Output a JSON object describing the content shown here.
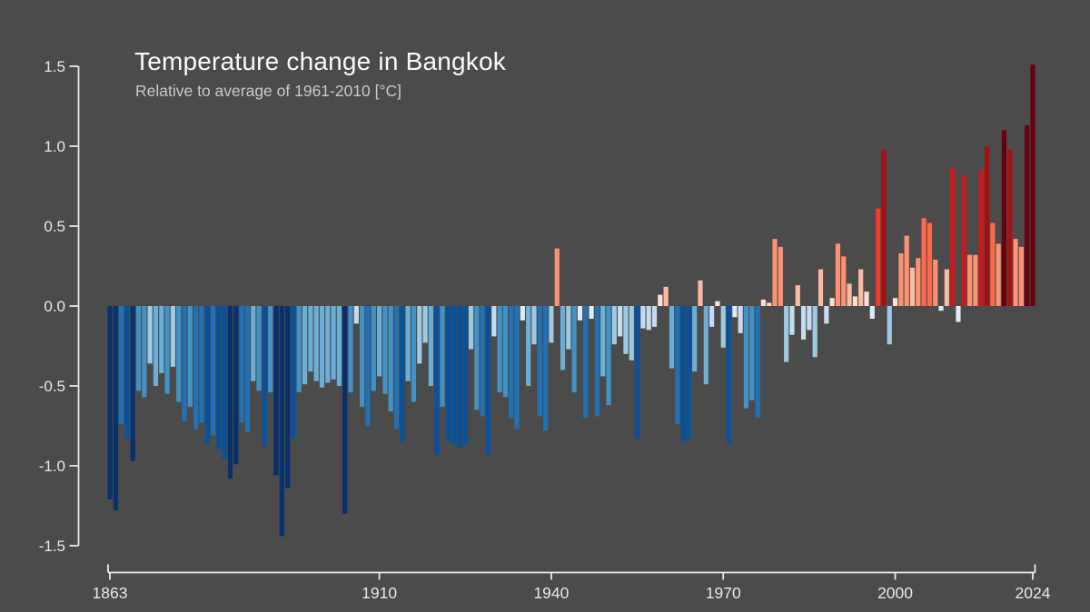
{
  "header": {
    "title": "Temperature change in Bangkok",
    "subtitle": "Relative to average of 1961-2010  [°C]"
  },
  "chart_data": {
    "type": "bar",
    "title": "Temperature change in Bangkok",
    "subtitle": "Relative to average of 1961-2010  [°C]",
    "unit": "°C",
    "xlabel": "",
    "ylabel": "",
    "grid": false,
    "legend": "none",
    "x_range": [
      1863,
      2024
    ],
    "ylim": [
      -1.5,
      1.5
    ],
    "y_tick_labels": [
      "1.5",
      "1.0",
      "0.5",
      "0.0",
      "-0.5",
      "-1.0",
      "-1.5"
    ],
    "y_tick_values": [
      1.5,
      1.0,
      0.5,
      0.0,
      -0.5,
      -1.0,
      -1.5
    ],
    "x_tick_labels": [
      "1863",
      "1910",
      "1940",
      "1970",
      "2000",
      "2024"
    ],
    "x_tick_years": [
      1863,
      1910,
      1940,
      1970,
      2000,
      2024
    ],
    "start_year": 1863,
    "end_year": 2024,
    "values": [
      -1.21,
      -1.28,
      -0.74,
      -0.83,
      -0.97,
      -0.53,
      -0.57,
      -0.36,
      -0.5,
      -0.42,
      -0.55,
      -0.38,
      -0.6,
      -0.72,
      -0.63,
      -0.77,
      -0.73,
      -0.86,
      -0.81,
      -0.9,
      -0.96,
      -1.08,
      -0.99,
      -0.73,
      -0.79,
      -0.47,
      -0.53,
      -0.88,
      -0.54,
      -1.06,
      -1.44,
      -1.14,
      -0.83,
      -0.54,
      -0.49,
      -0.41,
      -0.47,
      -0.51,
      -0.48,
      -0.46,
      -0.5,
      -1.3,
      -0.54,
      -0.11,
      -0.63,
      -0.75,
      -0.53,
      -0.44,
      -0.55,
      -0.66,
      -0.77,
      -0.85,
      -0.47,
      -0.6,
      -0.36,
      -0.23,
      -0.5,
      -0.93,
      -0.63,
      -0.85,
      -0.86,
      -0.89,
      -0.87,
      -0.27,
      -0.65,
      -0.69,
      -0.93,
      -0.19,
      -0.54,
      -0.57,
      -0.7,
      -0.77,
      -0.09,
      -0.5,
      -0.24,
      -0.69,
      -0.78,
      -0.23,
      0.36,
      -0.4,
      -0.27,
      -0.54,
      -0.09,
      -0.7,
      -0.08,
      -0.69,
      -0.44,
      -0.62,
      -0.24,
      -0.19,
      -0.3,
      -0.34,
      -0.83,
      -0.14,
      -0.15,
      -0.13,
      0.07,
      0.12,
      -0.39,
      -0.74,
      -0.85,
      -0.83,
      -0.41,
      0.16,
      -0.49,
      -0.13,
      0.03,
      -0.26,
      -0.86,
      -0.07,
      -0.17,
      -0.64,
      -0.59,
      -0.7,
      0.04,
      0.02,
      0.42,
      0.37,
      -0.35,
      -0.18,
      0.13,
      -0.21,
      -0.15,
      -0.32,
      0.23,
      -0.11,
      0.05,
      0.39,
      0.31,
      0.14,
      0.06,
      0.23,
      0.09,
      -0.08,
      0.61,
      0.98,
      -0.24,
      0.05,
      0.33,
      0.44,
      0.24,
      0.3,
      0.55,
      0.52,
      0.29,
      -0.03,
      0.23,
      0.86,
      -0.1,
      0.81,
      0.32,
      0.32,
      0.85,
      1.0,
      0.52,
      0.39,
      1.1,
      0.98,
      0.42,
      0.37,
      1.13,
      1.51
    ],
    "colors": {
      "background": "#4b4b4b",
      "title": "#fafafa",
      "subtitle": "#c9c9c9",
      "axis": "#e8e8e6",
      "tick_label": "#e8e8e6",
      "positive_stops": [
        [
          0.1,
          "#fee0d2"
        ],
        [
          0.25,
          "#fcbba1"
        ],
        [
          0.45,
          "#fc9272"
        ],
        [
          0.6,
          "#fb6a4a"
        ],
        [
          0.75,
          "#ef3b2c"
        ],
        [
          0.92,
          "#cb181d"
        ],
        [
          1.06,
          "#a50f15"
        ],
        [
          9.0,
          "#67000d"
        ]
      ],
      "negative_stops": [
        [
          0.105,
          "#deebf7"
        ],
        [
          0.22,
          "#c6dbef"
        ],
        [
          0.38,
          "#9ecae1"
        ],
        [
          0.52,
          "#6baed6"
        ],
        [
          0.66,
          "#4292c6"
        ],
        [
          0.82,
          "#2171b5"
        ],
        [
          0.96,
          "#08519c"
        ],
        [
          9.0,
          "#08306b"
        ]
      ]
    }
  }
}
